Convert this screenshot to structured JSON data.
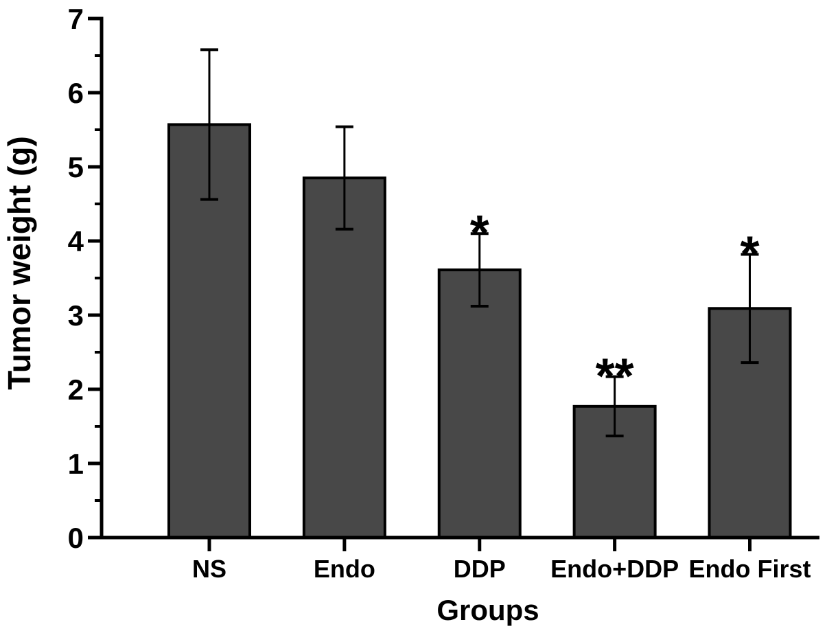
{
  "figure": {
    "background": "#ffffff",
    "text_color": "#000000"
  },
  "chart_data": {
    "type": "bar",
    "title": "",
    "xlabel": "Groups",
    "ylabel": "Tumor weight (g)",
    "categories": [
      "NS",
      "Endo",
      "DDP",
      "Endo+DDP",
      "Endo First"
    ],
    "values": [
      5.57,
      4.85,
      3.61,
      1.77,
      3.09
    ],
    "errors": [
      1.01,
      0.69,
      0.49,
      0.4,
      0.73
    ],
    "significance": [
      "",
      "",
      "*",
      "**",
      "*"
    ],
    "ylim": [
      0,
      7
    ],
    "ytick_labels": [
      "0",
      "1",
      "2",
      "3",
      "4",
      "5",
      "6",
      "7"
    ],
    "minor_tick_step": 0.5,
    "grid": false,
    "legend_position": "none",
    "bar_color": "#484848",
    "bar_edge_color": "#000000",
    "axis_color": "#000000",
    "error_bar_color": "#000000",
    "significance_color": "#000000"
  }
}
